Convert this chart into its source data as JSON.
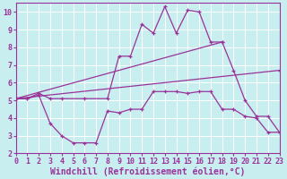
{
  "xlabel": "Windchill (Refroidissement éolien,°C)",
  "background_color": "#c8eef0",
  "line_color": "#993399",
  "xlim": [
    0,
    23
  ],
  "ylim": [
    2,
    10.5
  ],
  "yticks": [
    2,
    3,
    4,
    5,
    6,
    7,
    8,
    9,
    10
  ],
  "xticks": [
    0,
    1,
    2,
    3,
    4,
    5,
    6,
    7,
    8,
    9,
    10,
    11,
    12,
    13,
    14,
    15,
    16,
    17,
    18,
    19,
    20,
    21,
    22,
    23
  ],
  "line1_x": [
    0,
    1,
    2,
    3,
    4,
    6,
    8,
    9,
    10,
    11,
    12,
    13,
    14,
    15,
    16,
    17,
    18,
    19,
    20,
    21,
    22,
    23
  ],
  "line1_y": [
    5.1,
    5.1,
    5.4,
    5.1,
    5.1,
    5.1,
    5.1,
    7.5,
    7.5,
    9.3,
    8.8,
    10.3,
    8.8,
    10.1,
    10.0,
    8.3,
    8.3,
    6.7,
    5.0,
    4.1,
    4.1,
    3.2
  ],
  "line2_x": [
    0,
    1,
    2,
    3,
    4,
    5,
    6,
    7,
    8,
    9,
    10,
    11,
    12,
    13,
    14,
    15,
    16,
    17,
    18,
    19,
    20,
    21,
    22,
    23
  ],
  "line2_y": [
    5.1,
    5.1,
    5.3,
    3.7,
    3.0,
    2.6,
    2.6,
    2.6,
    4.4,
    4.3,
    4.5,
    4.5,
    5.5,
    5.5,
    5.5,
    5.4,
    5.5,
    5.5,
    4.5,
    4.5,
    4.1,
    4.0,
    3.2,
    3.2
  ],
  "line3_x": [
    0,
    23
  ],
  "line3_y": [
    5.1,
    6.7
  ],
  "line4_x": [
    0,
    18
  ],
  "line4_y": [
    5.1,
    8.3
  ],
  "grid_color": "#ffffff",
  "xlabel_fontsize": 7,
  "tick_fontsize": 6
}
